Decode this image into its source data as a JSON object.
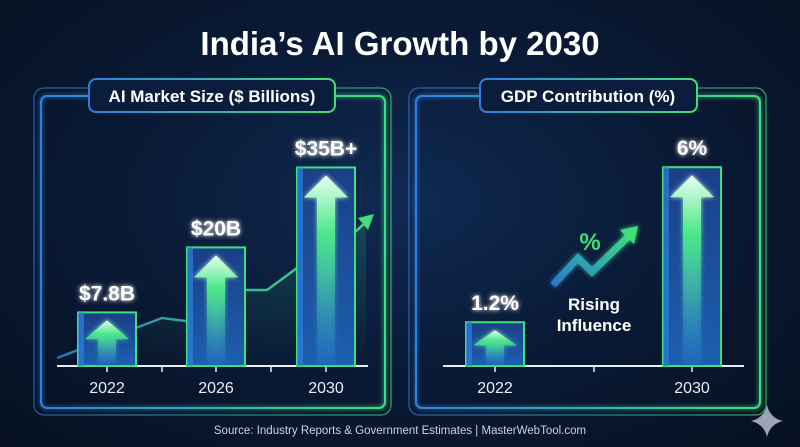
{
  "title": "India’s AI Growth by 2030",
  "source": "Source: Industry Reports & Government Estimates | MasterWebTool.com",
  "colors": {
    "background": "#0a1b38",
    "accent_green": "#3ee07a",
    "accent_blue": "#2f7fe0",
    "bar_fill": "#1a4d9a"
  },
  "chart_data": [
    {
      "type": "bar",
      "title": "AI Market Size ($ Billions)",
      "categories": [
        "2022",
        "2026",
        "2030"
      ],
      "values": [
        7.8,
        20,
        35
      ],
      "data_labels": [
        "$7.8B",
        "$20B",
        "$35B+"
      ],
      "xlabel": "",
      "ylabel": "",
      "grid": false,
      "trend_line": true
    },
    {
      "type": "bar",
      "title": "GDP Contribution (%)",
      "categories": [
        "2022",
        "2030"
      ],
      "values": [
        1.2,
        6
      ],
      "data_labels": [
        "1.2%",
        "6%"
      ],
      "xlabel": "",
      "ylabel": "",
      "grid": false,
      "annotation": {
        "icon": "percent-rising-arrow-icon",
        "symbol": "%",
        "lines": [
          "Rising",
          "Influence"
        ]
      }
    }
  ]
}
